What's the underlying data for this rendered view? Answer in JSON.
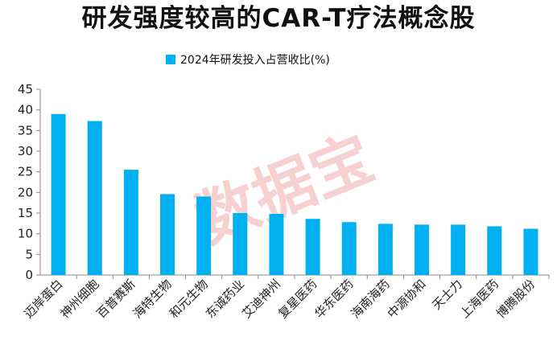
{
  "chart_data": {
    "type": "bar",
    "title": "研发强度较高的CAR-T疗法概念股",
    "legend_position": "top",
    "series": [
      {
        "name": "2024年研发投入占营收比(%)",
        "color": "#00b0f0",
        "values": [
          39,
          37.3,
          25.5,
          19.6,
          19,
          15,
          14.8,
          13.6,
          12.8,
          12.4,
          12.2,
          12.2,
          11.8,
          11.2
        ]
      }
    ],
    "categories": [
      "迈岸蛋白",
      "神州细胞",
      "百普赛斯",
      "海特生物",
      "和元生物",
      "东诚药业",
      "艾迪神州",
      "复星医药",
      "华东医药",
      "海南海药",
      "中源协和",
      "天士力",
      "上海医药",
      "博腾股份"
    ],
    "ylim": [
      0,
      45
    ],
    "yticks": [
      0,
      5,
      10,
      15,
      20,
      25,
      30,
      35,
      40,
      45
    ],
    "grid": false,
    "watermark": "数据宝"
  }
}
